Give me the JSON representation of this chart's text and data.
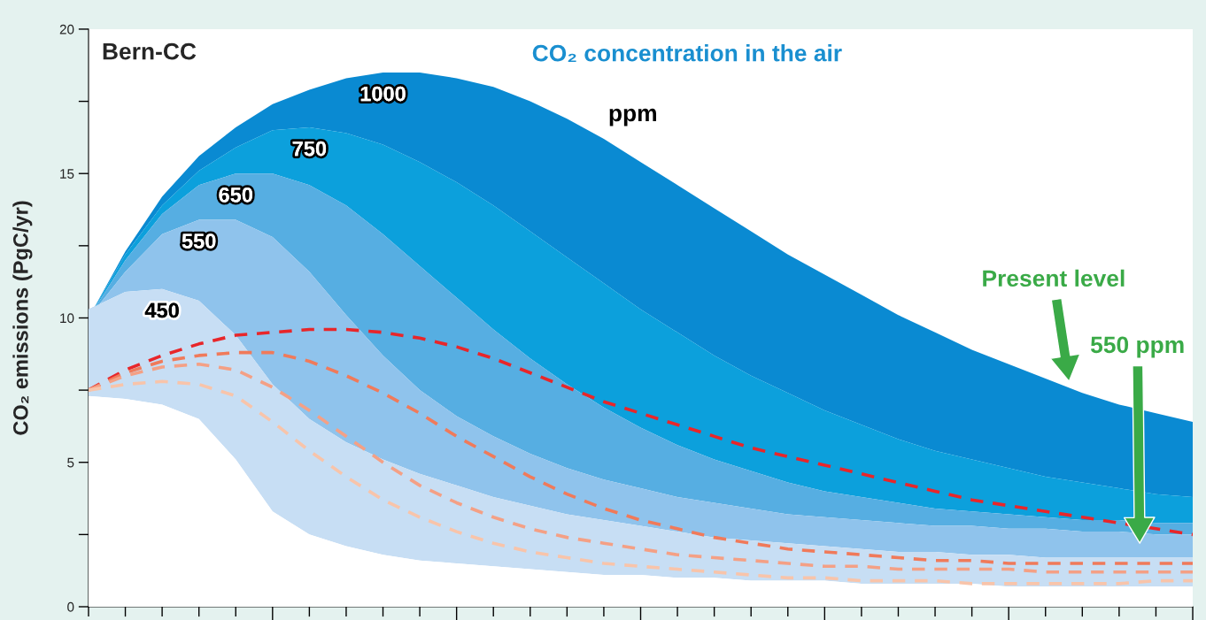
{
  "chart_data": {
    "type": "area",
    "title": "Bern-CC",
    "subtitle": "CO₂ concentration in the air",
    "ylabel": "CO₂ emissions (PgC/yr)",
    "annotations": [
      "ppm",
      "Present level",
      "550 ppm"
    ],
    "categories": [
      null,
      null,
      null,
      null,
      null,
      null,
      null,
      null,
      null,
      null,
      null,
      null,
      null,
      null,
      null,
      null,
      null,
      null,
      null,
      null,
      null,
      null,
      null,
      null,
      null,
      null,
      null,
      null,
      null,
      null,
      null
    ],
    "ylim": [
      0,
      20
    ],
    "yticks": [
      0,
      {
        "value": 2.5,
        "label": null
      },
      5,
      {
        "value": 7.5,
        "label": null
      },
      10,
      {
        "value": 12.5,
        "label": null
      },
      15,
      {
        "value": 17.5,
        "label": null
      },
      20
    ],
    "tick_labels": "y",
    "legend": false,
    "grid": false,
    "series": [
      {
        "name": "1000",
        "color": "#0a8ad2",
        "values": [
          10,
          12.3,
          14.2,
          15.6,
          16.6,
          17.4,
          17.9,
          18.3,
          18.5,
          18.5,
          18.3,
          18.0,
          17.5,
          16.9,
          16.2,
          15.4,
          14.6,
          13.8,
          13.0,
          12.2,
          11.5,
          10.8,
          10.1,
          9.5,
          8.9,
          8.4,
          7.9,
          7.4,
          7.0,
          6.7,
          6.4
        ]
      },
      {
        "name": "750",
        "color": "#0ca0dc",
        "values": [
          10,
          12.2,
          13.9,
          15.1,
          15.9,
          16.5,
          16.6,
          16.4,
          16.0,
          15.4,
          14.7,
          13.9,
          13.0,
          12.1,
          11.2,
          10.3,
          9.5,
          8.7,
          8.0,
          7.4,
          6.8,
          6.3,
          5.8,
          5.4,
          5.1,
          4.8,
          4.5,
          4.3,
          4.1,
          3.9,
          3.8
        ]
      },
      {
        "name": "650",
        "color": "#56aee2",
        "values": [
          10,
          12.0,
          13.6,
          14.6,
          15.0,
          15.0,
          14.6,
          13.9,
          12.9,
          11.8,
          10.7,
          9.6,
          8.6,
          7.7,
          6.9,
          6.2,
          5.6,
          5.1,
          4.7,
          4.3,
          4.0,
          3.8,
          3.6,
          3.4,
          3.3,
          3.2,
          3.1,
          3.0,
          3.0,
          2.9,
          2.9
        ]
      },
      {
        "name": "550",
        "color": "#8fc3ec",
        "values": [
          10,
          11.6,
          12.9,
          13.4,
          13.4,
          12.8,
          11.6,
          10.1,
          8.7,
          7.5,
          6.6,
          5.9,
          5.3,
          4.8,
          4.4,
          4.1,
          3.8,
          3.6,
          3.4,
          3.2,
          3.1,
          3.0,
          2.9,
          2.8,
          2.8,
          2.7,
          2.7,
          2.6,
          2.6,
          2.5,
          2.5
        ]
      },
      {
        "name": "450",
        "color": "#c7def4",
        "values": [
          10.3,
          10.9,
          11.0,
          10.6,
          9.4,
          7.7,
          6.5,
          5.7,
          5.1,
          4.6,
          4.2,
          3.8,
          3.5,
          3.2,
          3.0,
          2.8,
          2.6,
          2.4,
          2.3,
          2.2,
          2.1,
          2.0,
          1.9,
          1.9,
          1.8,
          1.8,
          1.7,
          1.7,
          1.7,
          1.7,
          1.7
        ]
      },
      {
        "color": "#ffffff",
        "values": [
          7.3,
          7.2,
          7.0,
          6.5,
          5.1,
          3.3,
          2.5,
          2.1,
          1.8,
          1.6,
          1.5,
          1.4,
          1.3,
          1.2,
          1.1,
          1.1,
          1.0,
          1.0,
          0.9,
          0.9,
          0.9,
          0.8,
          0.8,
          0.8,
          0.8,
          0.7,
          0.7,
          0.7,
          0.7,
          0.7,
          0.7
        ]
      },
      {
        "type": "line",
        "line_style": "dashed",
        "color": "#e8262a",
        "values": [
          7.5,
          8.2,
          8.7,
          9.1,
          9.4,
          9.5,
          9.6,
          9.6,
          9.5,
          9.3,
          9.0,
          8.6,
          8.1,
          7.6,
          7.1,
          6.7,
          6.3,
          5.9,
          5.5,
          5.2,
          4.9,
          4.6,
          4.3,
          4.0,
          3.7,
          3.5,
          3.3,
          3.1,
          2.9,
          2.7,
          2.5
        ]
      },
      {
        "type": "line",
        "line_style": "dashed",
        "color": "#f07a5a",
        "values": [
          7.5,
          8.1,
          8.5,
          8.7,
          8.8,
          8.8,
          8.5,
          8.0,
          7.4,
          6.7,
          5.9,
          5.2,
          4.5,
          3.9,
          3.4,
          3.0,
          2.7,
          2.4,
          2.2,
          2.0,
          1.9,
          1.8,
          1.7,
          1.6,
          1.6,
          1.5,
          1.5,
          1.5,
          1.5,
          1.5,
          1.5
        ]
      },
      {
        "type": "line",
        "line_style": "dashed",
        "color": "#f4a085",
        "values": [
          7.5,
          8.0,
          8.3,
          8.4,
          8.2,
          7.6,
          6.8,
          5.9,
          5.0,
          4.2,
          3.6,
          3.1,
          2.7,
          2.4,
          2.2,
          2.0,
          1.8,
          1.7,
          1.6,
          1.5,
          1.4,
          1.4,
          1.3,
          1.3,
          1.3,
          1.3,
          1.2,
          1.2,
          1.2,
          1.2,
          1.2
        ]
      },
      {
        "type": "line",
        "line_style": "dashed",
        "color": "#f8c4aa",
        "values": [
          7.5,
          7.7,
          7.8,
          7.7,
          7.3,
          6.4,
          5.4,
          4.5,
          3.7,
          3.1,
          2.6,
          2.2,
          1.9,
          1.7,
          1.5,
          1.4,
          1.3,
          1.2,
          1.1,
          1.0,
          1.0,
          0.9,
          0.9,
          0.9,
          0.8,
          0.8,
          0.8,
          0.8,
          0.8,
          0.9,
          0.9
        ]
      }
    ]
  }
}
